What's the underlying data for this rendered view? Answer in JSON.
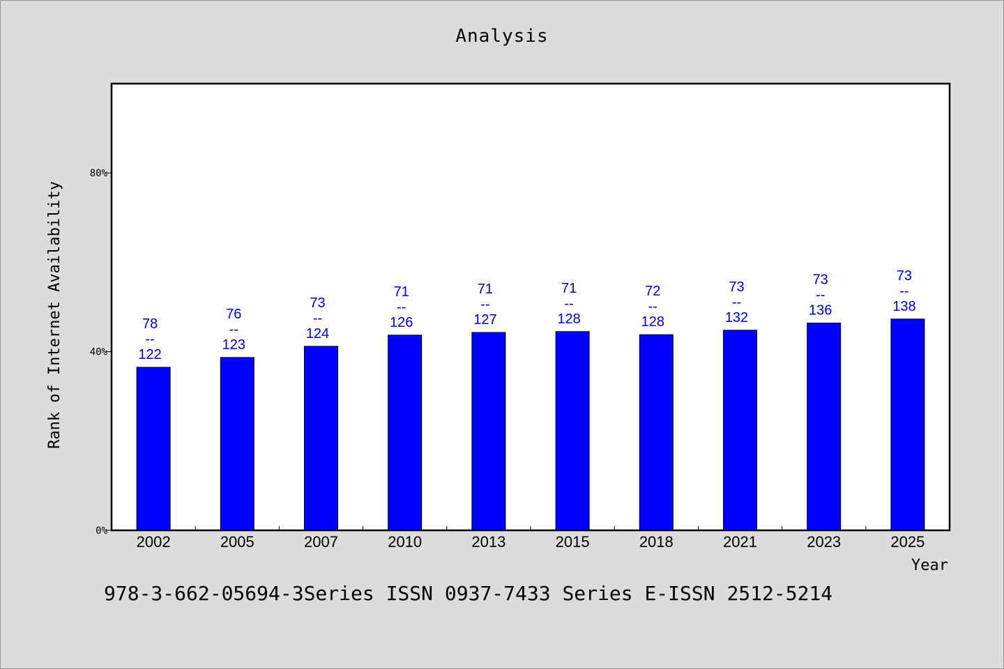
{
  "footnote": "978-3-662-05694-3Series ISSN 0937-7433 Series E-ISSN 2512-5214",
  "colors": {
    "bar": "#0000ff",
    "label": "#0000cc",
    "background": "#dcdcdc",
    "plot": "#ffffff"
  },
  "chart_data": {
    "type": "bar",
    "title": "Analysis",
    "xlabel": "Year",
    "ylabel": "Rank of Internet Availability",
    "ylim": [
      0,
      100
    ],
    "yticks": [
      0,
      40,
      80
    ],
    "ytick_labels": [
      "0%",
      "40%",
      "80%"
    ],
    "grid": false,
    "categories": [
      "2002",
      "2005",
      "2007",
      "2010",
      "2013",
      "2015",
      "2018",
      "2021",
      "2023",
      "2025"
    ],
    "values": [
      36.5,
      38.7,
      41.2,
      43.7,
      44.3,
      44.5,
      43.8,
      44.8,
      46.4,
      47.3
    ],
    "data_labels": [
      [
        "78",
        "--",
        "122"
      ],
      [
        "76",
        "--",
        "123"
      ],
      [
        "73",
        "--",
        "124"
      ],
      [
        "71",
        "--",
        "126"
      ],
      [
        "71",
        "--",
        "127"
      ],
      [
        "71",
        "--",
        "128"
      ],
      [
        "72",
        "--",
        "128"
      ],
      [
        "73",
        "--",
        "132"
      ],
      [
        "73",
        "--",
        "136"
      ],
      [
        "73",
        "--",
        "138"
      ]
    ]
  }
}
